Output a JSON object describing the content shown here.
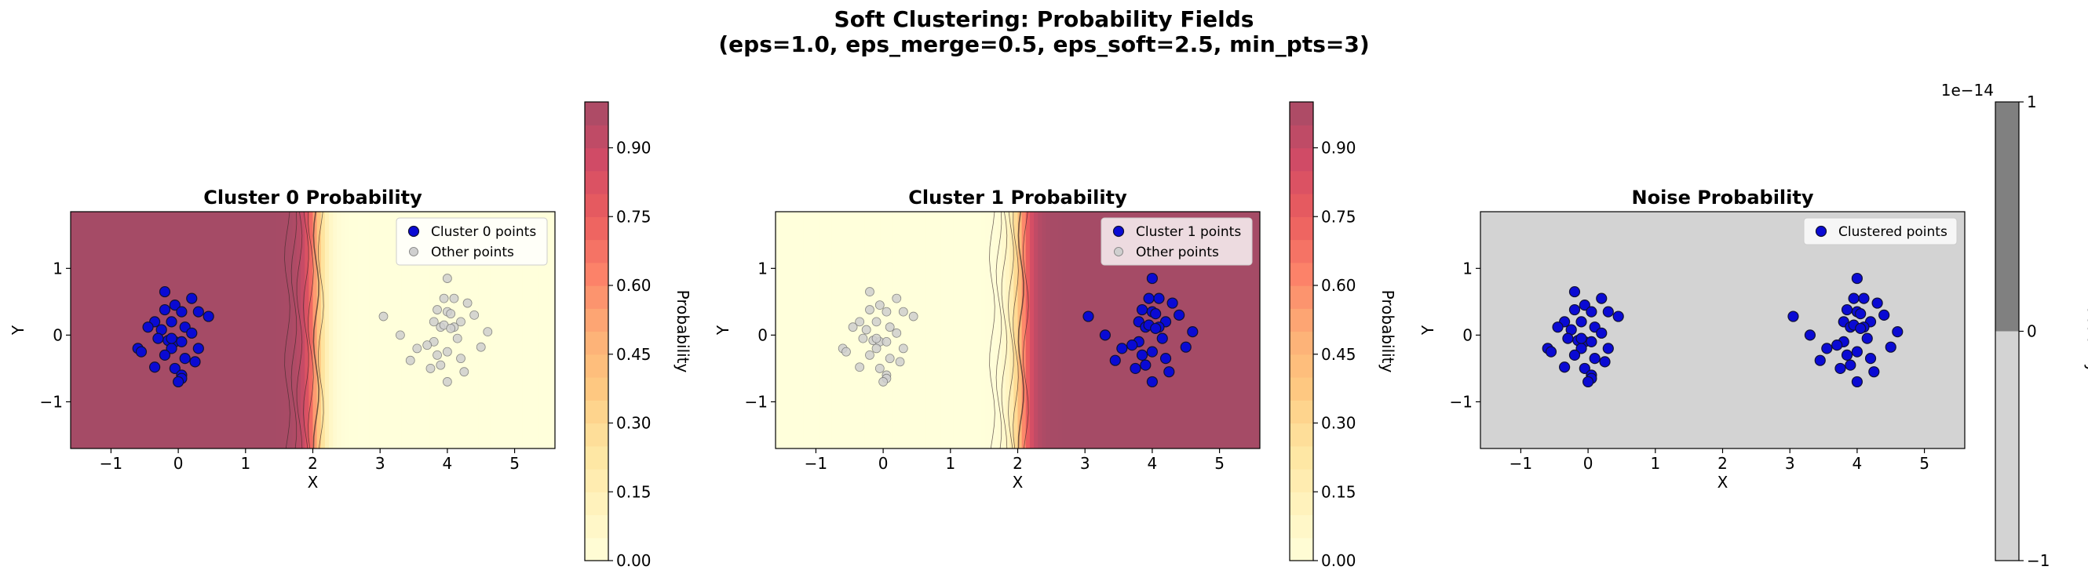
{
  "figure": {
    "title_line1": "Soft Clustering: Probability Fields",
    "title_line2": "(eps=1.0, eps_merge=0.5, eps_soft=2.5, min_pts=3)"
  },
  "colors": {
    "cluster_points": "#0a0ad4",
    "point_edge": "#111133",
    "other_points": "#cfcfcf",
    "noise_background": "#d3d3d3",
    "colormap": [
      "#ffffcc",
      "#ffeda0",
      "#fed976",
      "#feb24c",
      "#fd8d3c",
      "#fc4e2a",
      "#e31a1c",
      "#bd0026",
      "#800026"
    ],
    "field_alpha": 0.7
  },
  "chart_data": [
    {
      "type": "scatter",
      "title": "Cluster 0 Probability",
      "xlabel": "X",
      "ylabel": "Y",
      "xlim": [
        -1.6,
        5.6
      ],
      "ylim": [
        -1.7,
        1.85
      ],
      "xticks": [
        "−1",
        "0",
        "1",
        "2",
        "3",
        "4",
        "5"
      ],
      "xtick_values": [
        -1,
        0,
        1,
        2,
        3,
        4,
        5
      ],
      "yticks": [
        "−1",
        "0",
        "1"
      ],
      "ytick_values": [
        -1,
        0,
        1
      ],
      "field": "cluster0",
      "legend": {
        "placement": "top-right",
        "entries": [
          "Cluster 0 points",
          "Other points"
        ]
      },
      "highlight": "cluster0",
      "colorbar": {
        "label": "Probability",
        "ticks": [
          "0.00",
          "0.15",
          "0.30",
          "0.45",
          "0.60",
          "0.75",
          "0.90"
        ],
        "tick_values": [
          0,
          0.15,
          0.3,
          0.45,
          0.6,
          0.75,
          0.9
        ],
        "range": [
          0,
          1
        ]
      }
    },
    {
      "type": "scatter",
      "title": "Cluster 1 Probability",
      "xlabel": "X",
      "ylabel": "Y",
      "xlim": [
        -1.6,
        5.6
      ],
      "ylim": [
        -1.7,
        1.85
      ],
      "xticks": [
        "−1",
        "0",
        "1",
        "2",
        "3",
        "4",
        "5"
      ],
      "xtick_values": [
        -1,
        0,
        1,
        2,
        3,
        4,
        5
      ],
      "yticks": [
        "−1",
        "0",
        "1"
      ],
      "ytick_values": [
        -1,
        0,
        1
      ],
      "field": "cluster1",
      "legend": {
        "placement": "top-right",
        "entries": [
          "Cluster 1 points",
          "Other points"
        ]
      },
      "highlight": "cluster1",
      "colorbar": {
        "label": "Probability",
        "ticks": [
          "0.00",
          "0.15",
          "0.30",
          "0.45",
          "0.60",
          "0.75",
          "0.90"
        ],
        "tick_values": [
          0,
          0.15,
          0.3,
          0.45,
          0.6,
          0.75,
          0.9
        ],
        "range": [
          0,
          1
        ]
      }
    },
    {
      "type": "scatter",
      "title": "Noise Probability",
      "xlabel": "X",
      "ylabel": "Y",
      "xlim": [
        -1.6,
        5.6
      ],
      "ylim": [
        -1.7,
        1.85
      ],
      "xticks": [
        "−1",
        "0",
        "1",
        "2",
        "3",
        "4",
        "5"
      ],
      "xtick_values": [
        -1,
        0,
        1,
        2,
        3,
        4,
        5
      ],
      "yticks": [
        "−1",
        "0",
        "1"
      ],
      "ytick_values": [
        -1,
        0,
        1
      ],
      "field": "noise",
      "legend": {
        "placement": "top-right",
        "entries": [
          "Clustered points"
        ]
      },
      "highlight": "all",
      "colorbar": {
        "label": "Probability",
        "offset_text": "1e−14",
        "ticks": [
          "−1",
          "0",
          "1"
        ],
        "tick_values": [
          -1,
          0,
          1
        ],
        "range": [
          -1,
          1
        ],
        "bands": [
          "#d3d3d3",
          "#808080"
        ]
      }
    }
  ],
  "points": {
    "cluster0": [
      [
        -0.2,
        0.65
      ],
      [
        0.2,
        0.55
      ],
      [
        -0.05,
        0.45
      ],
      [
        -0.2,
        0.38
      ],
      [
        0.05,
        0.35
      ],
      [
        0.3,
        0.35
      ],
      [
        0.45,
        0.28
      ],
      [
        -0.35,
        0.2
      ],
      [
        -0.1,
        0.2
      ],
      [
        -0.45,
        0.12
      ],
      [
        -0.25,
        0.08
      ],
      [
        0.1,
        0.12
      ],
      [
        0.2,
        0.03
      ],
      [
        -0.3,
        -0.05
      ],
      [
        -0.15,
        -0.08
      ],
      [
        -0.05,
        -0.1
      ],
      [
        0.05,
        -0.1
      ],
      [
        -0.1,
        -0.2
      ],
      [
        0.3,
        -0.2
      ],
      [
        -0.6,
        -0.2
      ],
      [
        -0.55,
        -0.25
      ],
      [
        -0.2,
        -0.3
      ],
      [
        0.1,
        -0.35
      ],
      [
        0.25,
        -0.4
      ],
      [
        -0.35,
        -0.48
      ],
      [
        -0.05,
        -0.5
      ],
      [
        0.05,
        -0.6
      ],
      [
        0.05,
        -0.65
      ],
      [
        0.0,
        -0.7
      ],
      [
        -0.1,
        -0.05
      ]
    ],
    "cluster1": [
      [
        4.0,
        0.85
      ],
      [
        3.95,
        0.55
      ],
      [
        4.1,
        0.55
      ],
      [
        4.3,
        0.48
      ],
      [
        3.85,
        0.38
      ],
      [
        4.0,
        0.35
      ],
      [
        4.05,
        0.32
      ],
      [
        4.4,
        0.3
      ],
      [
        3.05,
        0.28
      ],
      [
        3.8,
        0.2
      ],
      [
        4.2,
        0.2
      ],
      [
        4.1,
        0.12
      ],
      [
        3.9,
        0.12
      ],
      [
        3.95,
        0.15
      ],
      [
        4.6,
        0.05
      ],
      [
        3.3,
        0.0
      ],
      [
        4.15,
        -0.05
      ],
      [
        3.8,
        -0.1
      ],
      [
        3.7,
        -0.15
      ],
      [
        3.55,
        -0.2
      ],
      [
        4.0,
        -0.25
      ],
      [
        4.5,
        -0.18
      ],
      [
        3.85,
        -0.3
      ],
      [
        4.2,
        -0.35
      ],
      [
        3.45,
        -0.38
      ],
      [
        3.9,
        -0.45
      ],
      [
        4.25,
        -0.55
      ],
      [
        3.75,
        -0.5
      ],
      [
        4.0,
        -0.7
      ],
      [
        4.05,
        0.1
      ]
    ]
  }
}
